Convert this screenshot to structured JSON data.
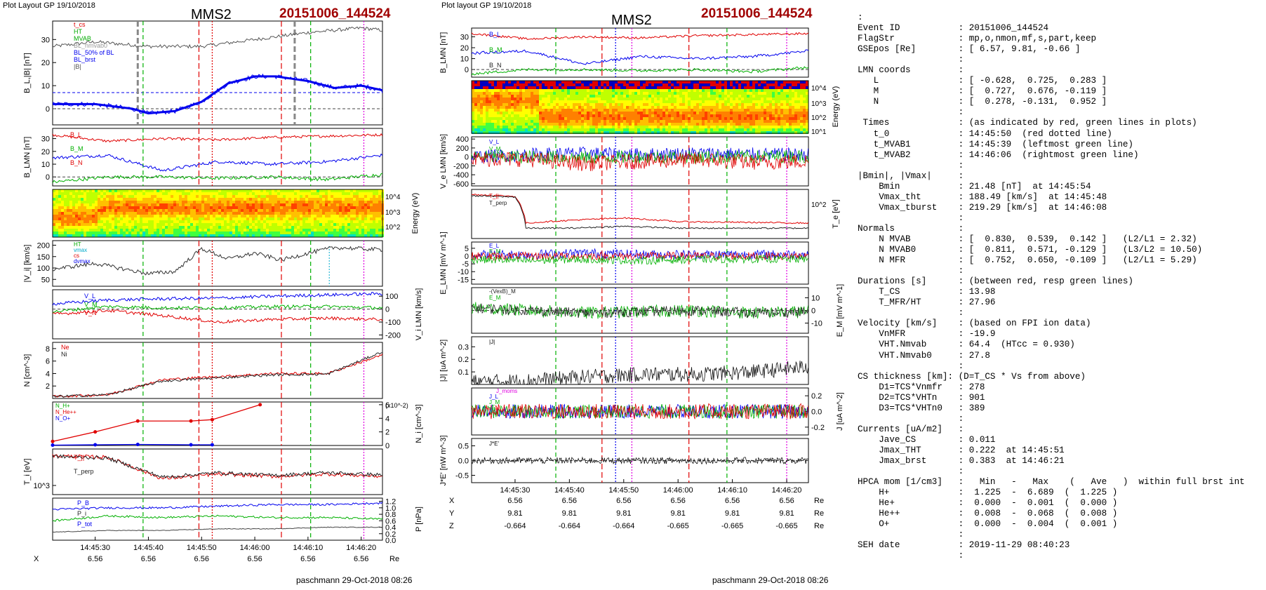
{
  "left_header": {
    "plot_label": "Plot Layout GP 19/10/2018",
    "spacecraft": "MMS2",
    "event": "20151006_144524"
  },
  "mid_header": {
    "plot_label": "Plot layout GP 19/10/2018",
    "spacecraft": "MMS2",
    "event": "20151006_144524"
  },
  "time_ticks": [
    "14:45:30",
    "14:45:40",
    "14:45:50",
    "14:46:00",
    "14:46:10",
    "14:46:20"
  ],
  "ephemeris": {
    "X": {
      "label": "X",
      "values": [
        "6.56",
        "6.56",
        "6.56",
        "6.56",
        "6.56",
        "6.56"
      ],
      "unit": "Re"
    },
    "Y": {
      "label": "Y",
      "values": [
        "9.81",
        "9.81",
        "9.81",
        "9.81",
        "9.81",
        "9.81"
      ],
      "unit": "Re"
    },
    "Z": {
      "label": "Z",
      "values": [
        "-0.664",
        "-0.664",
        "-0.664",
        "-0.665",
        "-0.665",
        "-0.665"
      ],
      "unit": "Re"
    }
  },
  "footer_left": "paschmann 29-Oct-2018 08:26",
  "footer_mid": "paschmann 29-Oct-2018 08:26",
  "colors": {
    "event": "#a00000",
    "red": "#e00000",
    "green": "#00b000",
    "blue": "#0000ee",
    "magenta": "#e000e0",
    "grey": "#888888"
  },
  "left_panels": {
    "b": {
      "ylabel": "B_L,|B| [nT]",
      "ticks": [
        "30",
        "20",
        "10",
        "0"
      ],
      "legend": [
        "t_cs",
        "HT",
        "MVAB",
        "BL_nmvab0",
        "BL_50% of BL",
        "BL_brst",
        "|B|"
      ]
    },
    "blmn": {
      "ylabel": "B_LMN [nT]",
      "ticks": [
        "30",
        "20",
        "10",
        "0"
      ],
      "labels": [
        "B_L",
        "B_M",
        "B_N"
      ]
    },
    "spec": {
      "ylabel": "Energy (eV)",
      "ticks": [
        "10^4",
        "10^3",
        "10^2"
      ]
    },
    "v": {
      "ylabel": "|V_i| [km/s]",
      "ticks": [
        "200",
        "150",
        "100",
        "50"
      ],
      "legend": [
        "HT",
        "vmax",
        "cs",
        "dvmax"
      ]
    },
    "vlmn": {
      "ylabel": "V_i LMN [km/s]",
      "ticks": [
        "100",
        "0",
        "-100",
        "-200"
      ],
      "labels": [
        "V_L",
        "V_M",
        "V_N"
      ]
    },
    "n": {
      "ylabel": "N [cm^-3]",
      "ticks": [
        "8",
        "6",
        "4",
        "2"
      ],
      "labels": [
        "Ne",
        "Ni"
      ]
    },
    "hpca": {
      "ylabel": "N_i [cm^-3]",
      "unit": "(x10^-2)",
      "ticks": [
        "6",
        "4",
        "2",
        "0"
      ],
      "legend": [
        "N_H+",
        "N_He++",
        "N_O+"
      ]
    },
    "ti": {
      "ylabel": "T_i [eV]",
      "tick": "10^3",
      "labels": [
        "T_||",
        "T_perp"
      ]
    },
    "p": {
      "ylabel": "P [nPa]",
      "ticks": [
        "1.2",
        "1.0",
        "0.8",
        "0.6",
        "0.4",
        "0.2",
        "0.0"
      ],
      "labels": [
        "P_B",
        "P_i",
        "P_tot"
      ]
    }
  },
  "mid_panels": {
    "blmn": {
      "ylabel": "B_LMN [nT]",
      "ticks": [
        "30",
        "20",
        "10",
        "0"
      ],
      "labels": [
        "B_L",
        "B_M",
        "B_N"
      ]
    },
    "spec": {
      "ylabel": "Energy (eV)",
      "ticks": [
        "10^4",
        "10^3",
        "10^2",
        "10^1"
      ]
    },
    "ve": {
      "ylabel": "V_e LMN [km/s]",
      "ticks": [
        "400",
        "200",
        "0",
        "-200",
        "-400",
        "-600"
      ],
      "labels": [
        "V_L",
        "V_M",
        "V_N"
      ]
    },
    "te": {
      "ylabel": "T_e [eV]",
      "tick": "10^2",
      "labels": [
        "T_||",
        "T_perp"
      ]
    },
    "e": {
      "ylabel": "E_LMN [mV m^-1]",
      "ticks": [
        "5",
        "0",
        "-5",
        "-10",
        "-15"
      ],
      "labels": [
        "E_L",
        "E_M",
        "E_N"
      ]
    },
    "em": {
      "ylabel": "E_M [mV m^-1]",
      "ticks": [
        "10",
        "0",
        "-10"
      ],
      "labels": [
        "-(VexB)_M",
        "E_M"
      ]
    },
    "j": {
      "ylabel": "|J| [uA m^-2]",
      "ticks": [
        "0.3",
        "0.2",
        "0.1"
      ],
      "labels": [
        "|J|"
      ]
    },
    "jlmn": {
      "ylabel": "J [uA m^-2]",
      "ticks": [
        "0.2",
        "0.0",
        "-0.2"
      ],
      "labels": [
        "J_moms",
        "J_L",
        "J_M",
        "J_N"
      ]
    },
    "je": {
      "ylabel": "J*E' [nW m^-3]",
      "ticks": [
        "0.5",
        "0.0",
        "-0.5"
      ],
      "labels": [
        "J*E'"
      ]
    }
  },
  "chart_data": [
    {
      "type": "line",
      "title": "",
      "xlabel": "",
      "ylabel": "B_L,|B| [nT]",
      "ylim": [
        -7,
        38
      ],
      "series": [
        {
          "name": "BL_brst",
          "x": [
            "14:45:22",
            "14:45:30",
            "14:45:37",
            "14:45:40",
            "14:45:45",
            "14:45:50",
            "14:45:55",
            "14:46:00",
            "14:46:04",
            "14:46:10",
            "14:46:15",
            "14:46:20",
            "14:46:24"
          ],
          "values": [
            2,
            2,
            0,
            -2,
            -1,
            3,
            11,
            14,
            14,
            12,
            9,
            10,
            8
          ]
        },
        {
          "name": "|B|",
          "x": [
            "14:45:22",
            "14:45:30",
            "14:45:40",
            "14:45:50",
            "14:46:00",
            "14:46:10",
            "14:46:20",
            "14:46:24"
          ],
          "values": [
            27,
            29,
            27,
            27,
            30,
            33,
            35,
            34
          ]
        }
      ]
    },
    {
      "type": "line",
      "title": "",
      "xlabel": "",
      "ylabel": "B_LMN [nT]",
      "ylim": [
        -7,
        38
      ],
      "series": [
        {
          "name": "B_L",
          "values": [
            33,
            28,
            30,
            29,
            31,
            32,
            33
          ]
        },
        {
          "name": "B_M",
          "values": [
            15,
            17,
            5,
            12,
            10,
            12,
            17
          ]
        },
        {
          "name": "B_N",
          "values": [
            -4,
            0,
            0,
            -1,
            0,
            -2,
            2
          ]
        }
      ]
    },
    {
      "type": "line",
      "title": "",
      "xlabel": "",
      "ylabel": "|V_i| [km/s]",
      "ylim": [
        20,
        220
      ],
      "series": [
        {
          "name": "|V_i|",
          "x": [
            "14:45:22",
            "14:45:30",
            "14:45:40",
            "14:45:45",
            "14:45:50",
            "14:45:55",
            "14:46:00",
            "14:46:05",
            "14:46:10",
            "14:46:15",
            "14:46:24"
          ],
          "values": [
            95,
            120,
            75,
            85,
            185,
            140,
            165,
            135,
            165,
            190,
            180
          ]
        }
      ]
    },
    {
      "type": "line",
      "title": "",
      "xlabel": "",
      "ylabel": "V_i LMN [km/s]",
      "ylim": [
        -200,
        150
      ],
      "series": [
        {
          "name": "V_L",
          "values": [
            40,
            70,
            80,
            85,
            100,
            110,
            120
          ]
        },
        {
          "name": "V_M",
          "values": [
            -20,
            20,
            10,
            10,
            20,
            20,
            10
          ]
        },
        {
          "name": "V_N",
          "values": [
            -40,
            -10,
            -50,
            -100,
            -80,
            -70,
            -80
          ]
        }
      ]
    },
    {
      "type": "line",
      "title": "",
      "xlabel": "",
      "ylabel": "N [cm^-3]",
      "ylim": [
        0,
        9
      ],
      "series": [
        {
          "name": "Ne",
          "values": [
            0.3,
            0.6,
            3.0,
            3.5,
            4.0,
            4.0,
            7.0
          ]
        },
        {
          "name": "Ni",
          "values": [
            0.3,
            0.6,
            2.8,
            3.3,
            3.8,
            3.9,
            7.5
          ]
        }
      ]
    },
    {
      "type": "line",
      "title": "",
      "xlabel": "",
      "ylabel": "N_i [cm^-3] (x10^-2)",
      "ylim": [
        0,
        6
      ],
      "series": [
        {
          "name": "N_He++",
          "x": [
            "14:45:22",
            "14:45:30",
            "14:45:38",
            "14:45:48",
            "14:45:52",
            "14:46:01"
          ],
          "values": [
            0.6,
            2.0,
            3.6,
            3.6,
            3.8,
            6.0
          ]
        },
        {
          "name": "N_O+",
          "x": [
            "14:45:22",
            "14:45:30",
            "14:45:38",
            "14:45:48",
            "14:45:52"
          ],
          "values": [
            0.05,
            0.1,
            0.15,
            0.1,
            0.1
          ]
        }
      ]
    },
    {
      "type": "line",
      "title": "",
      "xlabel": "",
      "ylabel": "P [nPa]",
      "ylim": [
        0,
        1.2
      ],
      "series": [
        {
          "name": "P_B",
          "values": [
            0.95,
            1.0,
            1.0,
            1.05,
            1.1,
            1.1,
            1.15
          ]
        },
        {
          "name": "P_i",
          "values": [
            0.6,
            0.75,
            0.7,
            0.75,
            0.7,
            0.7,
            0.65
          ]
        },
        {
          "name": "P_tot",
          "values": [
            0.25,
            0.3,
            0.3,
            0.35,
            0.35,
            0.4,
            0.4
          ]
        }
      ]
    },
    {
      "type": "line",
      "title": "",
      "xlabel": "",
      "ylabel": "T_e [eV]",
      "series": [
        {
          "name": "T_||",
          "x": [
            "14:45:22",
            "14:45:30",
            "14:45:32",
            "14:45:40",
            "14:45:50",
            "14:46:00",
            "14:46:24"
          ],
          "values": [
            300,
            270,
            60,
            70,
            80,
            65,
            60
          ]
        },
        {
          "name": "T_perp",
          "x": [
            "14:45:22",
            "14:45:30",
            "14:45:32",
            "14:45:40",
            "14:45:50",
            "14:46:00",
            "14:46:24"
          ],
          "values": [
            280,
            260,
            45,
            45,
            50,
            45,
            45
          ]
        }
      ]
    }
  ],
  "info_lines": [
    ":",
    "Event ID           : 20151006_144524",
    "FlagStr            : mp,o,nmon,mf,s,part,keep",
    "GSEpos [Re]        : [ 6.57, 9.81, -0.66 ]",
    "                   :",
    "LMN coords         :",
    "   L               : [ -0.628,  0.725,  0.283 ]",
    "   M               : [  0.727,  0.676, -0.119 ]",
    "   N               : [  0.278, -0.131,  0.952 ]",
    "                   :",
    " Times             : (as indicated by red, green lines in plots)",
    "   t_0             : 14:45:50  (red dotted line)",
    "   t_MVAB1         : 14:45:39  (leftmost green line)",
    "   t_MVAB2         : 14:46:06  (rightmost green line)",
    "                   :",
    "|Bmin|, |Vmax|     :",
    "    Bmin           : 21.48 [nT]  at 14:45:54",
    "    Vmax_tht       : 188.49 [km/s]  at 14:45:48",
    "    Vmax_tburst    : 219.29 [km/s]  at 14:46:08",
    "                   :",
    "Normals            :",
    "    N MVAB         : [  0.830,  0.539,  0.142 ]   (L2/L1 = 2.32)",
    "    N MVAB0        : [  0.811,  0.571, -0.129 ]   (L3/L2 = 10.50)",
    "    N MFR          : [  0.752,  0.650, -0.109 ]   (L2/L1 = 5.29)",
    "                   :",
    "Durations [s]      : (between red, resp green lines)",
    "    T_CS           : 13.98",
    "    T_MFR/HT       : 27.96",
    "                   :",
    "Velocity [km/s]    : (based on FPI ion data)",
    "    VnMFR          : -19.9",
    "    VHT.Nmvab      : 64.4  (HTcc = 0.930)",
    "    VHT.Nmvab0     : 27.8",
    "                   :",
    "CS thickness [km]: (D=T_CS * Vs from above)",
    "    D1=TCS*Vnmfr   : 278",
    "    D2=TCS*VHTn    : 901",
    "    D3=TCS*VHTn0   : 389",
    "                   :",
    "Currents [uA/m2]   :",
    "    Jave_CS        : 0.011",
    "    Jmax_THT       : 0.222  at 14:45:51",
    "    Jmax_brst      : 0.383  at 14:46:21",
    "                   :",
    "HPCA mom [1/cm3]   :   Min   -   Max    (   Ave   )  within full brst int",
    "    H+             :  1.225  -  6.689  (  1.225 )",
    "    He+            :  0.000  -  0.001  (  0.000 )",
    "    He++           :  0.008  -  0.068  (  0.008 )",
    "    O+             :  0.000  -  0.004  (  0.001 )",
    "                   :",
    "SEH date           : 2019-11-29 08:40:23",
    "                   :"
  ]
}
